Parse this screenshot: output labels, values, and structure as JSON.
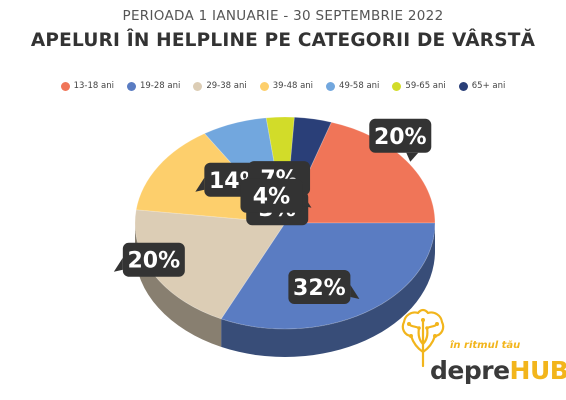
{
  "header": {
    "subtitle": "PERIOADA 1 IANUARIE - 30 SEPTEMBRIE 2022",
    "title": "APELURI ÎN HELPLINE PE CATEGORII DE VÂRSTĂ"
  },
  "chart_data": {
    "type": "pie",
    "title": "APELURI ÎN HELPLINE PE CATEGORII DE VÂRSTĂ",
    "subtitle": "PERIOADA 1 IANUARIE - 30 SEPTEMBRIE 2022",
    "legend_position": "top",
    "categories": [
      "13-18 ani",
      "19-28 ani",
      "29-38 ani",
      "39-48 ani",
      "49-58 ani",
      "59-65 ani",
      "65+ ani"
    ],
    "values": [
      20,
      32,
      20,
      14,
      7,
      3,
      4
    ],
    "labels": [
      "20%",
      "32%",
      "20%",
      "14%",
      "7%",
      "3%",
      "4%"
    ],
    "colors": [
      "#f07558",
      "#5a7cc2",
      "#dccdb5",
      "#fdcf6c",
      "#72a7de",
      "#d2dc29",
      "#2a3f78"
    ]
  },
  "brand": {
    "tagline": "în ritmul tău",
    "name_part1": "depre",
    "name_part2": "HUB",
    "accent_color": "#f2b51c"
  }
}
